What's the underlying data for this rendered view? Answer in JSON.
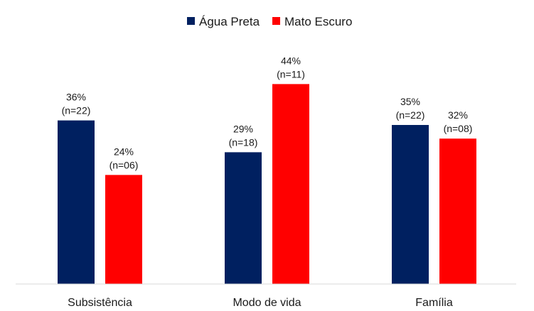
{
  "chart_data": {
    "type": "bar",
    "title": "",
    "xlabel": "",
    "ylabel": "",
    "ylim": [
      0,
      50
    ],
    "grid": false,
    "legend_position": "top-center",
    "categories": [
      "Subsistência",
      "Modo de vida",
      "Família"
    ],
    "series": [
      {
        "name": "Água Preta",
        "color": "#002060",
        "values": [
          36,
          29,
          35
        ],
        "labels": [
          "36%",
          "29%",
          "35%"
        ],
        "counts": [
          "(n=22)",
          "(n=18)",
          "(n=22)"
        ]
      },
      {
        "name": "Mato Escuro",
        "color": "#ff0000",
        "values": [
          24,
          44,
          32
        ],
        "labels": [
          "24%",
          "44%",
          "32%"
        ],
        "counts": [
          "(n=06)",
          "(n=11)",
          "(n=08)"
        ]
      }
    ]
  }
}
